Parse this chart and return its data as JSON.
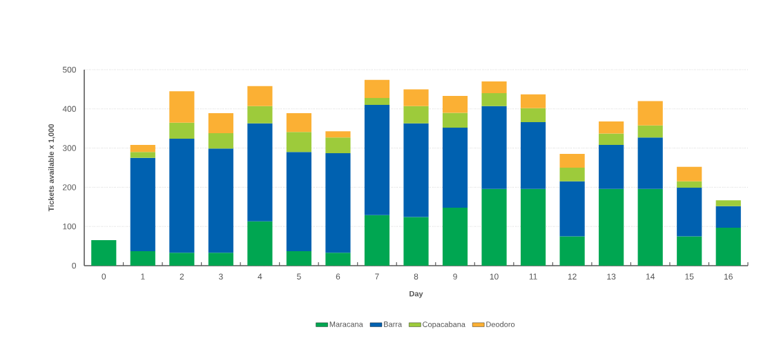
{
  "chart_data": {
    "type": "bar",
    "stacked": true,
    "xlabel": "Day",
    "ylabel": "Tickets available x 1,000",
    "categories": [
      "0",
      "1",
      "2",
      "3",
      "4",
      "5",
      "6",
      "7",
      "8",
      "9",
      "10",
      "11",
      "12",
      "13",
      "14",
      "15",
      "16"
    ],
    "series": [
      {
        "name": "Maracana",
        "color": "#00a651",
        "values": [
          65,
          37,
          33,
          33,
          113,
          37,
          33,
          129,
          124,
          148,
          196,
          196,
          75,
          196,
          196,
          75,
          97
        ]
      },
      {
        "name": "Barra",
        "color": "#0061b0",
        "values": [
          null,
          238,
          291,
          266,
          250,
          253,
          254,
          281,
          239,
          204,
          211,
          170,
          140,
          112,
          131,
          124,
          55
        ]
      },
      {
        "name": "Copacabana",
        "color": "#9dcb3b",
        "values": [
          null,
          15,
          41,
          39,
          44,
          51,
          40,
          18,
          44,
          38,
          33,
          36,
          35,
          29,
          31,
          16,
          15
        ]
      },
      {
        "name": "Deodoro",
        "color": "#fbb034",
        "values": [
          null,
          18,
          80,
          51,
          51,
          48,
          16,
          46,
          43,
          43,
          30,
          35,
          35,
          31,
          62,
          37,
          null
        ]
      }
    ],
    "ylim": [
      0,
      500
    ],
    "yticks": [
      0,
      100,
      200,
      300,
      400,
      500
    ],
    "grid": "y",
    "legend": "bottom"
  }
}
